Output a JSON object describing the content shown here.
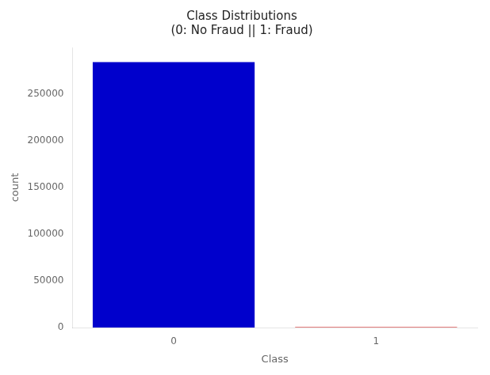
{
  "chart_data": {
    "type": "bar",
    "title": "Class Distributions\n(0: No Fraud || 1: Fraud)",
    "xlabel": "Class",
    "ylabel": "count",
    "categories": [
      0,
      1
    ],
    "values": [
      284315,
      492
    ],
    "colors": [
      "#0000cc",
      "#cc0000"
    ],
    "ylim": [
      0,
      300000
    ],
    "yticks": [
      0,
      50000,
      100000,
      150000,
      200000,
      250000
    ],
    "grid": false
  }
}
